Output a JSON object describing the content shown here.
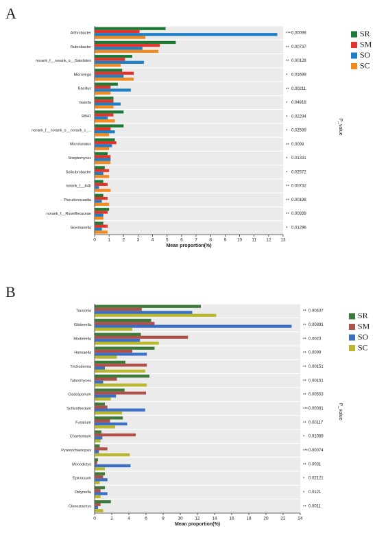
{
  "chart_data": [
    {
      "type": "bar",
      "orientation": "horizontal",
      "panel_label": "A",
      "xlabel": "Mean proportion(%)",
      "side_label": "P_value",
      "categories": [
        "Arthrobacter",
        "Rubrobacter",
        "norank_f__norank_o__Gaiellales",
        "Microvirga",
        "Bacillus",
        "Gaiella",
        "RB41",
        "norank_f__norank_o__norank_c_...",
        "Microlunatus",
        "Streptomyces",
        "Solirubrobacter",
        "norank_f__A4b",
        "Pseudonocardia",
        "norank_f__Roseiflexaceae",
        "Skermanella"
      ],
      "series": [
        {
          "name": "SR",
          "color": "#1e7a36",
          "values": [
            4.9,
            5.6,
            2.6,
            1.9,
            1.6,
            1.3,
            2.0,
            2.0,
            1.4,
            0.9,
            0.7,
            0.6,
            0.6,
            1.0,
            0.6
          ]
        },
        {
          "name": "SM",
          "color": "#e5322b",
          "values": [
            3.1,
            4.5,
            2.1,
            2.7,
            1.1,
            1.3,
            1.3,
            1.1,
            1.5,
            1.1,
            1.0,
            0.9,
            0.9,
            0.9,
            0.9
          ]
        },
        {
          "name": "SO",
          "color": "#1f7fc4",
          "values": [
            12.6,
            3.3,
            3.4,
            2.0,
            2.5,
            1.8,
            0.9,
            1.4,
            1.2,
            1.1,
            0.6,
            0.3,
            0.5,
            0.6,
            0.5
          ]
        },
        {
          "name": "SC",
          "color": "#f28a1e",
          "values": [
            3.5,
            4.4,
            1.8,
            2.7,
            1.1,
            1.3,
            1.4,
            1.0,
            1.0,
            1.1,
            1.0,
            1.1,
            1.0,
            0.6,
            0.9
          ]
        }
      ],
      "significance": [
        "***",
        "**",
        "**",
        "*",
        "**",
        "*",
        "*",
        "*",
        "**",
        "*",
        "*",
        "**",
        "**",
        "**",
        "*"
      ],
      "p_values": [
        0.00098,
        0.00737,
        0.00128,
        0.01699,
        0.00211,
        0.04918,
        0.02294,
        0.02599,
        0.0099,
        0.01331,
        0.02572,
        0.00732,
        0.00198,
        0.00939,
        0.01296
      ],
      "xlim": [
        0,
        13
      ],
      "xticks": [
        0,
        1,
        2,
        3,
        4,
        5,
        6,
        7,
        8,
        9,
        10,
        11,
        12,
        13
      ]
    },
    {
      "type": "bar",
      "orientation": "horizontal",
      "panel_label": "B",
      "xlabel": "Mean proportion(%)",
      "side_label": "P_value",
      "categories": [
        "Tausonia",
        "Gibberella",
        "Mortierella",
        "Hannaella",
        "Trichoderma",
        "Talaromyces",
        "Cladosporium",
        "Schizothecium",
        "Fusarium",
        "Chaetomium",
        "Pyrenochaetopsis",
        "Monodictys",
        "Epicoccum",
        "Didymella",
        "Clonostachys"
      ],
      "series": [
        {
          "name": "SR",
          "color": "#3b7a37",
          "values": [
            12.4,
            6.6,
            5.4,
            7.0,
            3.6,
            6.4,
            3.5,
            1.2,
            3.3,
            0.8,
            0.6,
            0.4,
            1.2,
            1.2,
            1.9
          ]
        },
        {
          "name": "SM",
          "color": "#b0504a",
          "values": [
            5.5,
            7.0,
            10.9,
            4.4,
            6.1,
            2.6,
            6.0,
            1.5,
            1.8,
            4.8,
            1.5,
            0.3,
            1.0,
            0.7,
            0.7
          ]
        },
        {
          "name": "SO",
          "color": "#3a6fc4",
          "values": [
            11.4,
            23.0,
            5.3,
            6.1,
            1.2,
            1.0,
            2.5,
            5.9,
            3.8,
            0.9,
            0.5,
            4.2,
            1.5,
            1.5,
            0.4
          ]
        },
        {
          "name": "SC",
          "color": "#b9b82c",
          "values": [
            14.2,
            4.4,
            7.5,
            2.6,
            5.9,
            6.1,
            1.9,
            3.2,
            2.4,
            0.7,
            4.1,
            1.2,
            0.6,
            0.7,
            1.0
          ]
        }
      ],
      "significance": [
        "**",
        "**",
        "**",
        "**",
        "**",
        "**",
        "**",
        "***",
        "**",
        "*",
        "***",
        "**",
        "*",
        "*",
        "**"
      ],
      "p_values": [
        0.00437,
        0.00891,
        0.0023,
        0.0099,
        0.00151,
        0.00151,
        0.00553,
        0.00081,
        0.00117,
        0.01089,
        0.00074,
        0.0031,
        0.02121,
        0.0121,
        0.0011
      ],
      "xlim": [
        0,
        24
      ],
      "xticks": [
        0,
        2,
        4,
        6,
        8,
        10,
        12,
        14,
        16,
        18,
        20,
        22,
        24
      ]
    }
  ]
}
